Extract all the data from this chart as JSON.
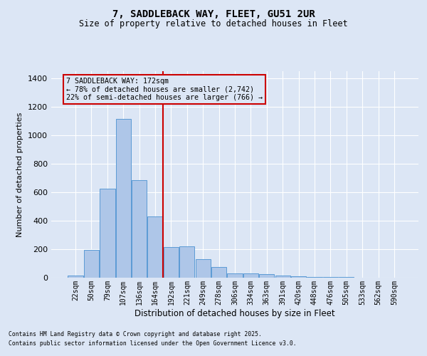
{
  "title1": "7, SADDLEBACK WAY, FLEET, GU51 2UR",
  "title2": "Size of property relative to detached houses in Fleet",
  "xlabel": "Distribution of detached houses by size in Fleet",
  "ylabel": "Number of detached properties",
  "categories": [
    "22sqm",
    "50sqm",
    "79sqm",
    "107sqm",
    "136sqm",
    "164sqm",
    "192sqm",
    "221sqm",
    "249sqm",
    "278sqm",
    "306sqm",
    "334sqm",
    "363sqm",
    "391sqm",
    "420sqm",
    "448sqm",
    "476sqm",
    "505sqm",
    "533sqm",
    "562sqm",
    "590sqm"
  ],
  "values": [
    15,
    195,
    625,
    1115,
    685,
    430,
    215,
    220,
    130,
    75,
    30,
    30,
    25,
    15,
    10,
    5,
    5,
    3,
    2,
    1,
    1
  ],
  "bar_color": "#aec6e8",
  "bar_edge_color": "#5b9bd5",
  "background_color": "#dce6f5",
  "grid_color": "#ffffff",
  "vline_color": "#cc0000",
  "annotation_text": "7 SADDLEBACK WAY: 172sqm\n← 78% of detached houses are smaller (2,742)\n22% of semi-detached houses are larger (766) →",
  "annotation_box_color": "#cc0000",
  "ylim": [
    0,
    1450
  ],
  "yticks": [
    0,
    200,
    400,
    600,
    800,
    1000,
    1200,
    1400
  ],
  "footer1": "Contains HM Land Registry data © Crown copyright and database right 2025.",
  "footer2": "Contains public sector information licensed under the Open Government Licence v3.0."
}
